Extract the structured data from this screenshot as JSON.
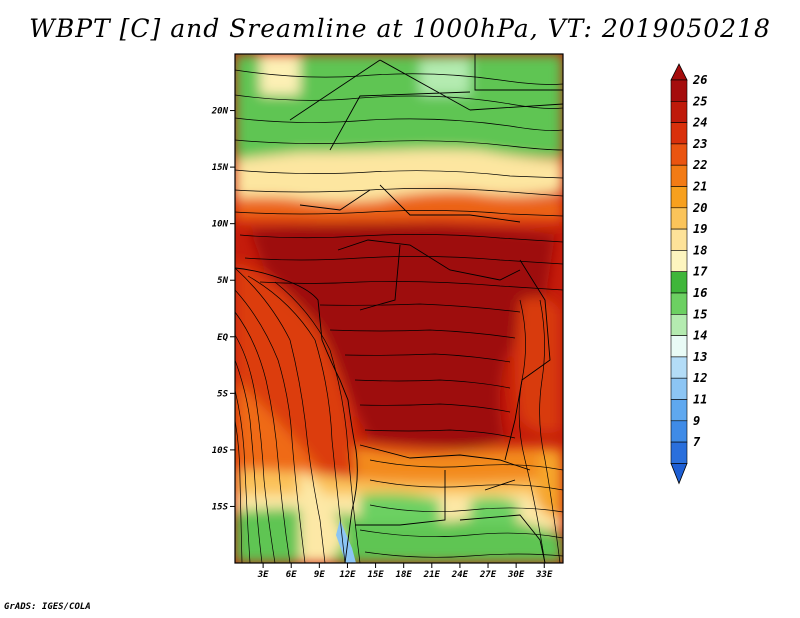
{
  "title": "WBPT [C] and Sreamline at 1000hPa, VT: 2019050218",
  "credit": "GrADS: IGES/COLA",
  "map": {
    "lat_range": [
      -20,
      25
    ],
    "lon_range": [
      0,
      35
    ],
    "lat_ticks": [
      {
        "value": 20,
        "label": "20N"
      },
      {
        "value": 15,
        "label": "15N"
      },
      {
        "value": 10,
        "label": "10N"
      },
      {
        "value": 5,
        "label": "5N"
      },
      {
        "value": 0,
        "label": "EQ"
      },
      {
        "value": -5,
        "label": "5S"
      },
      {
        "value": -10,
        "label": "10S"
      },
      {
        "value": -15,
        "label": "15S"
      }
    ],
    "lon_ticks": [
      {
        "value": 3,
        "label": "3E"
      },
      {
        "value": 6,
        "label": "6E"
      },
      {
        "value": 9,
        "label": "9E"
      },
      {
        "value": 12,
        "label": "12E"
      },
      {
        "value": 15,
        "label": "15E"
      },
      {
        "value": 18,
        "label": "18E"
      },
      {
        "value": 21,
        "label": "21E"
      },
      {
        "value": 24,
        "label": "24E"
      },
      {
        "value": 27,
        "label": "27E"
      },
      {
        "value": 30,
        "label": "30E"
      },
      {
        "value": 33,
        "label": "33E"
      }
    ]
  },
  "colorbar": {
    "levels": [
      {
        "label": "26",
        "color": "#a50d0d"
      },
      {
        "label": "25",
        "color": "#bf1a0a"
      },
      {
        "label": "24",
        "color": "#d9300b"
      },
      {
        "label": "23",
        "color": "#ea5410"
      },
      {
        "label": "22",
        "color": "#f27b15"
      },
      {
        "label": "21",
        "color": "#f7a01e"
      },
      {
        "label": "20",
        "color": "#fbc45a"
      },
      {
        "label": "19",
        "color": "#fde299"
      },
      {
        "label": "18",
        "color": "#fdf5bf"
      },
      {
        "label": "17",
        "color": "#3fb63a"
      },
      {
        "label": "16",
        "color": "#6cd062"
      },
      {
        "label": "15",
        "color": "#b4ebb0"
      },
      {
        "label": "14",
        "color": "#e9fbf6"
      },
      {
        "label": "13",
        "color": "#b3dcf7"
      },
      {
        "label": "12",
        "color": "#8cc5f4"
      },
      {
        "label": "11",
        "color": "#5fa8ef"
      },
      {
        "label": "9",
        "color": "#3f8be7"
      },
      {
        "label": "7",
        "color": "#2a6fdc"
      }
    ],
    "bottom_color": "#1e5fd4"
  }
}
